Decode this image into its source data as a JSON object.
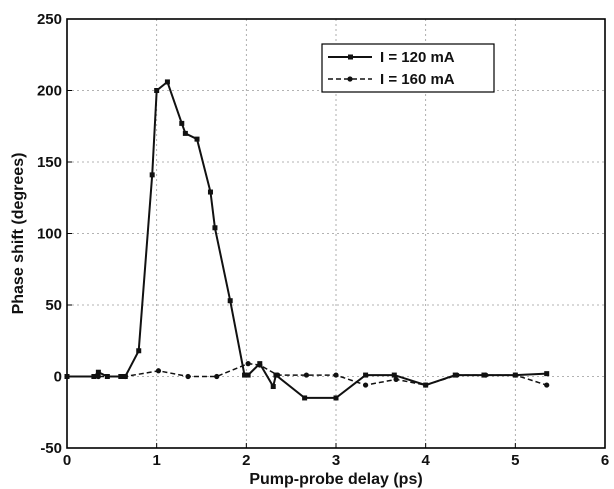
{
  "chart_data": {
    "type": "line",
    "title": "",
    "xlabel": "Pump-probe delay (ps)",
    "ylabel": "Phase shift (degrees)",
    "xlim": [
      0,
      6
    ],
    "ylim": [
      -50,
      250
    ],
    "xticks": [
      "0",
      "1",
      "2",
      "3",
      "4",
      "5",
      "6"
    ],
    "yticks": [
      "-50",
      "0",
      "50",
      "100",
      "150",
      "200",
      "250"
    ],
    "grid": true,
    "legend_position": "top-right",
    "series": [
      {
        "name": "I = 120 mA",
        "line_style": "solid",
        "marker": "square",
        "color": "#111111",
        "x": [
          0,
          0.3,
          0.35,
          0.45,
          0.6,
          0.65,
          0.8,
          0.95,
          1.0,
          1.12,
          1.28,
          1.32,
          1.45,
          1.6,
          1.65,
          1.82,
          1.98,
          2.02,
          2.15,
          2.3,
          2.33,
          2.65,
          3.0,
          3.33,
          3.65,
          4.0,
          4.33,
          4.65,
          5.0,
          5.35
        ],
        "y": [
          0,
          0,
          3,
          0,
          0,
          0,
          18,
          141,
          200,
          206,
          177,
          170,
          166,
          129,
          104,
          53,
          1,
          1,
          9,
          -7,
          1,
          -15,
          -15,
          1,
          1,
          -6,
          1,
          1,
          1,
          2
        ]
      },
      {
        "name": "I = 160 mA",
        "line_style": "dashed",
        "marker": "circle",
        "color": "#111111",
        "x": [
          0,
          0.35,
          0.65,
          1.02,
          1.35,
          1.67,
          2.02,
          2.15,
          2.35,
          2.67,
          3.0,
          3.33,
          3.67,
          4.0,
          4.35,
          4.67,
          5.0,
          5.35
        ],
        "y": [
          0,
          0,
          0,
          4,
          0,
          0,
          9,
          8,
          1,
          1,
          1,
          -6,
          -2,
          -6,
          1,
          1,
          1,
          -6
        ]
      }
    ]
  }
}
